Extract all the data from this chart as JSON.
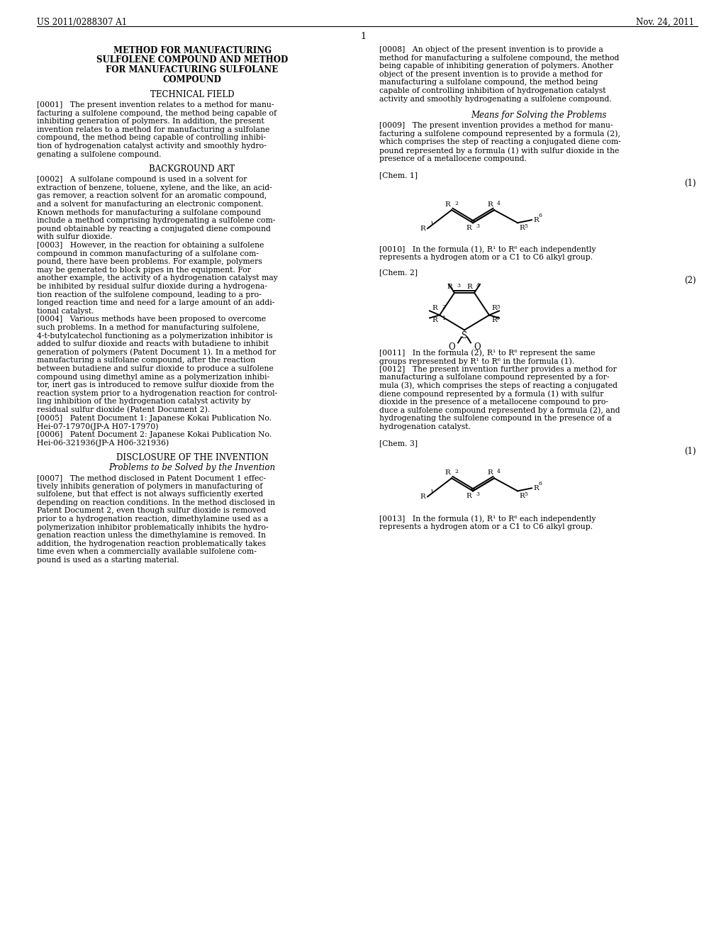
{
  "bg_color": "#ffffff",
  "header_left": "US 2011/0288307 A1",
  "header_right": "Nov. 24, 2011",
  "page_number": "1",
  "left_col_title_lines": [
    "METHOD FOR MANUFACTURING",
    "SULFOLENE COMPOUND AND METHOD",
    "FOR MANUFACTURING SULFOLANE",
    "COMPOUND"
  ],
  "section_technical": "TECHNICAL FIELD",
  "section_background": "BACKGROUND ART",
  "section_disclosure": "DISCLOSURE OF THE INVENTION",
  "section_problems": "Problems to be Solved by the Invention",
  "section_means": "Means for Solving the Problems",
  "para_0001": "[0001]   The present invention relates to a method for manu-\nfacturing a sulfolene compound, the method being capable of\ninhibiting generation of polymers. In addition, the present\ninvention relates to a method for manufacturing a sulfolane\ncompound, the method being capable of controlling inhibi-\ntion of hydrogenation catalyst activity and smoothly hydro-\ngenating a sulfolene compound.",
  "para_0002": "[0002]   A sulfolane compound is used in a solvent for\nextraction of benzene, toluene, xylene, and the like, an acid-\ngas remover, a reaction solvent for an aromatic compound,\nand a solvent for manufacturing an electronic component.\nKnown methods for manufacturing a sulfolane compound\ninclude a method comprising hydrogenating a sulfolene com-\npound obtainable by reacting a conjugated diene compound\nwith sulfur dioxide.",
  "para_0003": "[0003]   However, in the reaction for obtaining a sulfolene\ncompound in common manufacturing of a sulfolane com-\npound, there have been problems. For example, polymers\nmay be generated to block pipes in the equipment. For\nanother example, the activity of a hydrogenation catalyst may\nbe inhibited by residual sulfur dioxide during a hydrogena-\ntion reaction of the sulfolene compound, leading to a pro-\nlonged reaction time and need for a large amount of an addi-\ntional catalyst.",
  "para_0004": "[0004]   Various methods have been proposed to overcome\nsuch problems. In a method for manufacturing sulfolene,\n4-t-butylcatechol functioning as a polymerization inhibitor is\nadded to sulfur dioxide and reacts with butadiene to inhibit\ngeneration of polymers (Patent Document 1). In a method for\nmanufacturing a sulfolane compound, after the reaction\nbetween butadiene and sulfur dioxide to produce a sulfolene\ncompound using dimethyl amine as a polymerization inhibi-\ntor, inert gas is introduced to remove sulfur dioxide from the\nreaction system prior to a hydrogenation reaction for control-\nling inhibition of the hydrogenation catalyst activity by\nresidual sulfur dioxide (Patent Document 2).",
  "para_0005": "[0005]   Patent Document 1: Japanese Kokai Publication No.\nHei-07-17970(JP-A H07-17970)",
  "para_0006": "[0006]   Patent Document 2: Japanese Kokai Publication No.\nHei-06-321936(JP-A H06-321936)",
  "para_0007": "[0007]   The method disclosed in Patent Document 1 effec-\ntively inhibits generation of polymers in manufacturing of\nsulfolene, but that effect is not always sufficiently exerted\ndepending on reaction conditions. In the method disclosed in\nPatent Document 2, even though sulfur dioxide is removed\nprior to a hydrogenation reaction, dimethylamine used as a\npolymerization inhibitor problematically inhibits the hydro-\ngenation reaction unless the dimethylamine is removed. In\naddition, the hydrogenation reaction problematically takes\ntime even when a commercially available sulfolene com-\npound is used as a starting material.",
  "para_0008": "[0008]   An object of the present invention is to provide a\nmethod for manufacturing a sulfolene compound, the method\nbeing capable of inhibiting generation of polymers. Another\nobject of the present invention is to provide a method for\nmanufacturing a sulfolane compound, the method being\ncapable of controlling inhibition of hydrogenation catalyst\nactivity and smoothly hydrogenating a sulfolene compound.",
  "para_0009": "[0009]   The present invention provides a method for manu-\nfacturing a sulfolene compound represented by a formula (2),\nwhich comprises the step of reacting a conjugated diene com-\npound represented by a formula (1) with sulfur dioxide in the\npresence of a metallocene compound.",
  "chem1_label": "[Chem. 1]",
  "chem1_formula": "(1)",
  "chem2_label": "[Chem. 2]",
  "chem2_formula": "(2)",
  "chem3_label": "[Chem. 3]",
  "chem3_formula": "(1)",
  "para_0010": "[0010]   In the formula (1), R¹ to R⁶ each independently\nrepresents a hydrogen atom or a C1 to C6 alkyl group.",
  "para_0011": "[0011]   In the formula (2), R¹ to R⁶ represent the same\ngroups represented by R¹ to R⁶ in the formula (1).",
  "para_0012": "[0012]   The present invention further provides a method for\nmanufacturing a sulfolane compound represented by a for-\nmula (3), which comprises the steps of reacting a conjugated\ndiene compound represented by a formula (1) with sulfur\ndioxide in the presence of a metallocene compound to pro-\nduce a sulfolene compound represented by a formula (2), and\nhydrogenating the sulfolene compound in the presence of a\nhydrogenation catalyst.",
  "para_0013": "[0013]   In the formula (1), R¹ to R⁶ each independently\nrepresents a hydrogen atom or a C1 to C6 alkyl group."
}
